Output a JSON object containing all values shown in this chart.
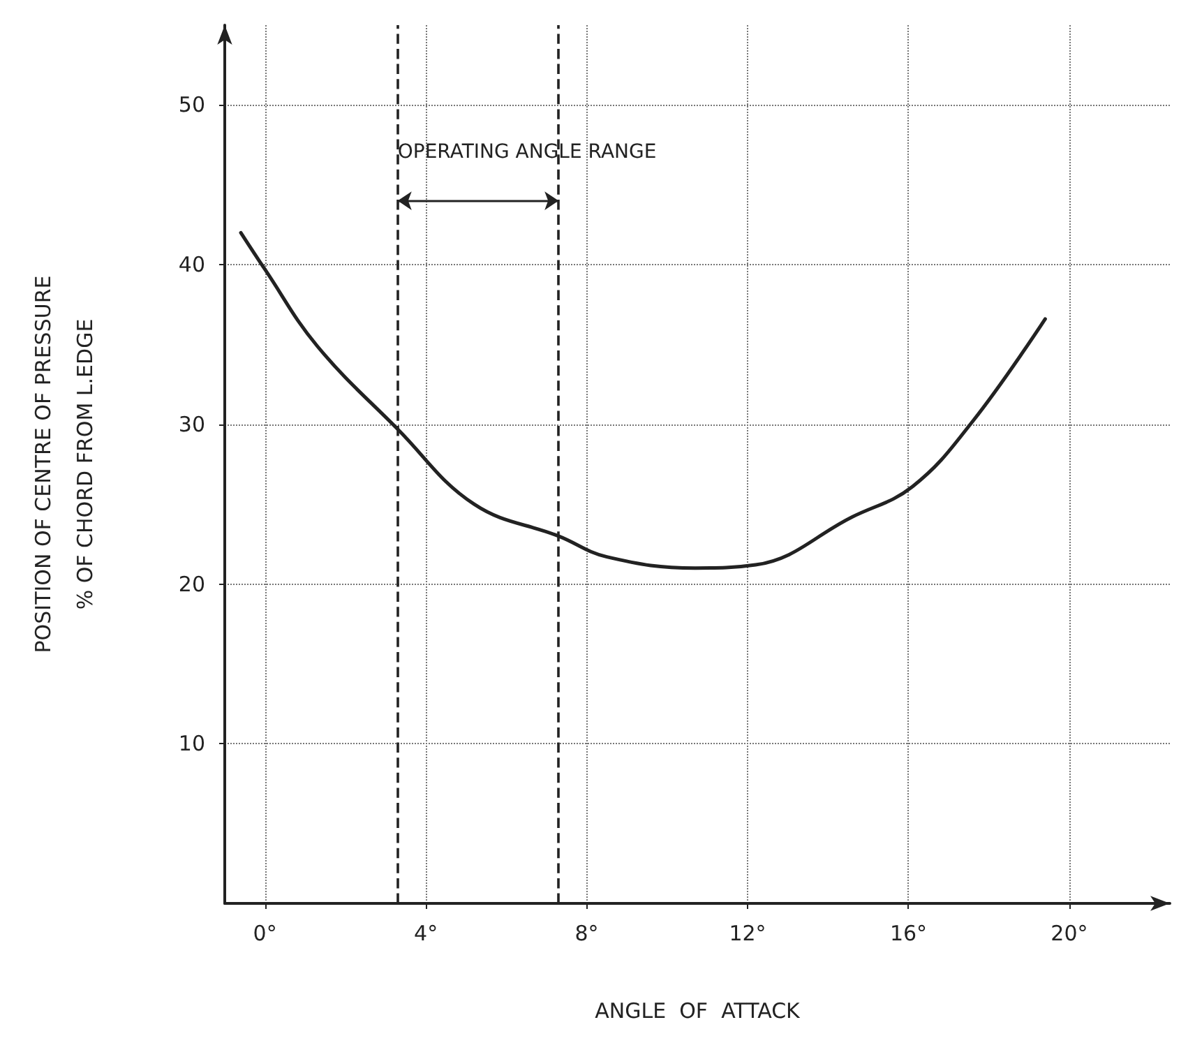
{
  "chart_data": {
    "type": "line",
    "xlabel": "ANGLE  OF  ATTACK",
    "ylabel": "POSITION OF CENTRE OF PRESSURE\n% OF CHORD FROM L.EDGE",
    "x": [
      -0.6,
      0,
      1.3,
      3.3,
      5.2,
      7.3,
      8.5,
      10.7,
      12.2,
      14.6,
      16.1,
      17.6,
      19.4
    ],
    "series": [
      {
        "color": "#222222",
        "values": [
          42,
          39.7,
          34.9,
          29.7,
          25,
          23,
          21.7,
          21,
          21.2,
          24.2,
          26.1,
          30.2,
          36.6
        ]
      }
    ],
    "xlim": [
      -1,
      22.5
    ],
    "ylim": [
      0,
      55
    ],
    "xticks": [
      {
        "value": 0,
        "label": "0°"
      },
      {
        "value": 4,
        "label": "4°"
      },
      {
        "value": 8,
        "label": "8°"
      },
      {
        "value": 12,
        "label": "12°"
      },
      {
        "value": 16,
        "label": "16°"
      },
      {
        "value": 20,
        "label": "20°"
      }
    ],
    "yticks": [
      10,
      20,
      30,
      40,
      50
    ],
    "grid": true,
    "marker": "none",
    "line_style": "solid",
    "ref_lines": [
      {
        "axis": "x",
        "value": 3.3,
        "label": null,
        "line_style": "dashed"
      },
      {
        "axis": "x",
        "value": 7.3,
        "label": null,
        "line_style": "dashed"
      }
    ],
    "annotations": [
      "OPERATING ANGLE RANGE"
    ]
  }
}
